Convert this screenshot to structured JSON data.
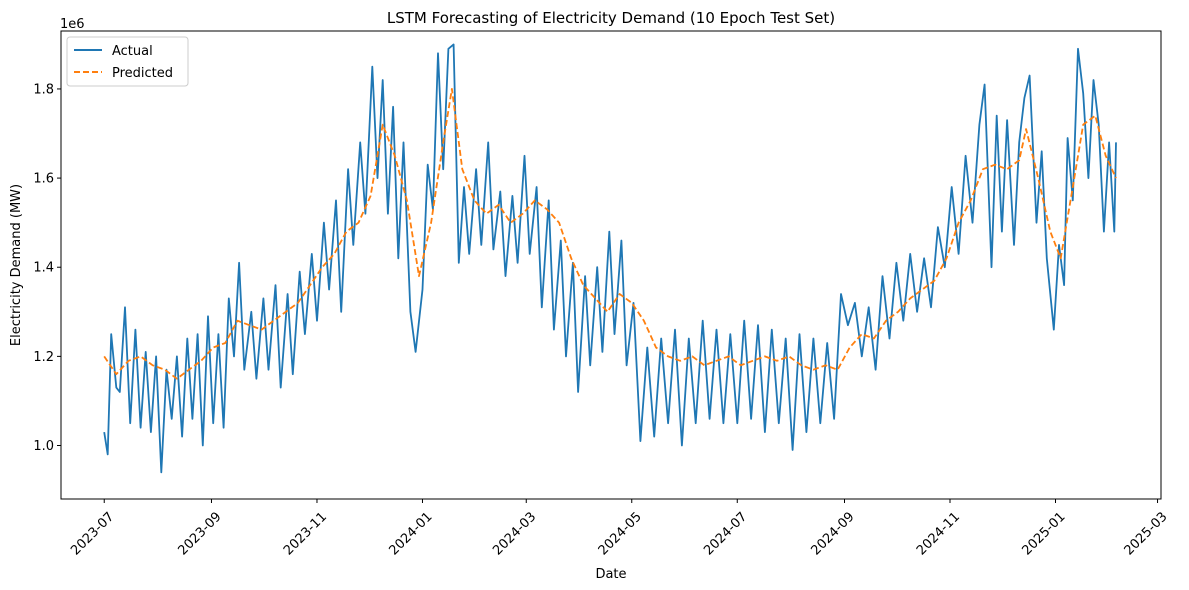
{
  "chart_data": {
    "type": "line",
    "title": "LSTM Forecasting of Electricity Demand (10 Epoch Test Set)",
    "xlabel": "Date",
    "ylabel": "Electricity Demand (MW)",
    "y_offset_label": "1e6",
    "xlim": [
      "2023-06-06",
      "2025-03-03"
    ],
    "ylim": [
      0.88,
      1.93
    ],
    "y_unit_multiplier": 1000000,
    "x_ticks": [
      "2023-07",
      "2023-09",
      "2023-11",
      "2024-01",
      "2024-03",
      "2024-05",
      "2024-07",
      "2024-09",
      "2024-11",
      "2025-01",
      "2025-03"
    ],
    "y_ticks": [
      1.0,
      1.2,
      1.4,
      1.6,
      1.8
    ],
    "y_tick_labels": [
      "1.0",
      "1.2",
      "1.4",
      "1.6",
      "1.8"
    ],
    "legend_position": "upper-left",
    "grid": false,
    "series": [
      {
        "name": "Actual",
        "color": "#1f77b4",
        "style": "solid",
        "points": [
          [
            "2023-07-01",
            1.03
          ],
          [
            "2023-07-03",
            0.98
          ],
          [
            "2023-07-05",
            1.25
          ],
          [
            "2023-07-08",
            1.13
          ],
          [
            "2023-07-10",
            1.12
          ],
          [
            "2023-07-13",
            1.31
          ],
          [
            "2023-07-16",
            1.05
          ],
          [
            "2023-07-19",
            1.26
          ],
          [
            "2023-07-22",
            1.04
          ],
          [
            "2023-07-25",
            1.21
          ],
          [
            "2023-07-28",
            1.03
          ],
          [
            "2023-07-31",
            1.2
          ],
          [
            "2023-08-03",
            0.94
          ],
          [
            "2023-08-06",
            1.17
          ],
          [
            "2023-08-09",
            1.06
          ],
          [
            "2023-08-12",
            1.2
          ],
          [
            "2023-08-15",
            1.02
          ],
          [
            "2023-08-18",
            1.24
          ],
          [
            "2023-08-21",
            1.06
          ],
          [
            "2023-08-24",
            1.25
          ],
          [
            "2023-08-27",
            1.0
          ],
          [
            "2023-08-30",
            1.29
          ],
          [
            "2023-09-02",
            1.05
          ],
          [
            "2023-09-05",
            1.25
          ],
          [
            "2023-09-08",
            1.04
          ],
          [
            "2023-09-11",
            1.33
          ],
          [
            "2023-09-14",
            1.2
          ],
          [
            "2023-09-17",
            1.41
          ],
          [
            "2023-09-20",
            1.17
          ],
          [
            "2023-09-24",
            1.3
          ],
          [
            "2023-09-27",
            1.15
          ],
          [
            "2023-10-01",
            1.33
          ],
          [
            "2023-10-04",
            1.17
          ],
          [
            "2023-10-08",
            1.36
          ],
          [
            "2023-10-11",
            1.13
          ],
          [
            "2023-10-15",
            1.34
          ],
          [
            "2023-10-18",
            1.16
          ],
          [
            "2023-10-22",
            1.39
          ],
          [
            "2023-10-25",
            1.25
          ],
          [
            "2023-10-29",
            1.43
          ],
          [
            "2023-11-01",
            1.28
          ],
          [
            "2023-11-05",
            1.5
          ],
          [
            "2023-11-08",
            1.35
          ],
          [
            "2023-11-12",
            1.55
          ],
          [
            "2023-11-15",
            1.3
          ],
          [
            "2023-11-19",
            1.62
          ],
          [
            "2023-11-22",
            1.45
          ],
          [
            "2023-11-26",
            1.68
          ],
          [
            "2023-11-29",
            1.52
          ],
          [
            "2023-12-03",
            1.85
          ],
          [
            "2023-12-06",
            1.6
          ],
          [
            "2023-12-09",
            1.82
          ],
          [
            "2023-12-12",
            1.52
          ],
          [
            "2023-12-15",
            1.76
          ],
          [
            "2023-12-18",
            1.42
          ],
          [
            "2023-12-21",
            1.68
          ],
          [
            "2023-12-25",
            1.3
          ],
          [
            "2023-12-28",
            1.21
          ],
          [
            "2024-01-01",
            1.35
          ],
          [
            "2024-01-04",
            1.63
          ],
          [
            "2024-01-07",
            1.53
          ],
          [
            "2024-01-10",
            1.88
          ],
          [
            "2024-01-13",
            1.62
          ],
          [
            "2024-01-16",
            1.89
          ],
          [
            "2024-01-19",
            1.9
          ],
          [
            "2024-01-22",
            1.41
          ],
          [
            "2024-01-25",
            1.58
          ],
          [
            "2024-01-28",
            1.43
          ],
          [
            "2024-02-01",
            1.62
          ],
          [
            "2024-02-04",
            1.45
          ],
          [
            "2024-02-08",
            1.68
          ],
          [
            "2024-02-11",
            1.44
          ],
          [
            "2024-02-15",
            1.57
          ],
          [
            "2024-02-18",
            1.38
          ],
          [
            "2024-02-22",
            1.56
          ],
          [
            "2024-02-25",
            1.41
          ],
          [
            "2024-02-29",
            1.65
          ],
          [
            "2024-03-03",
            1.43
          ],
          [
            "2024-03-07",
            1.58
          ],
          [
            "2024-03-10",
            1.31
          ],
          [
            "2024-03-14",
            1.55
          ],
          [
            "2024-03-17",
            1.26
          ],
          [
            "2024-03-21",
            1.46
          ],
          [
            "2024-03-24",
            1.2
          ],
          [
            "2024-03-28",
            1.41
          ],
          [
            "2024-03-31",
            1.12
          ],
          [
            "2024-04-04",
            1.38
          ],
          [
            "2024-04-07",
            1.18
          ],
          [
            "2024-04-11",
            1.4
          ],
          [
            "2024-04-14",
            1.21
          ],
          [
            "2024-04-18",
            1.48
          ],
          [
            "2024-04-21",
            1.25
          ],
          [
            "2024-04-25",
            1.46
          ],
          [
            "2024-04-28",
            1.18
          ],
          [
            "2024-05-02",
            1.32
          ],
          [
            "2024-05-06",
            1.01
          ],
          [
            "2024-05-10",
            1.22
          ],
          [
            "2024-05-14",
            1.02
          ],
          [
            "2024-05-18",
            1.24
          ],
          [
            "2024-05-22",
            1.05
          ],
          [
            "2024-05-26",
            1.26
          ],
          [
            "2024-05-30",
            1.0
          ],
          [
            "2024-06-03",
            1.24
          ],
          [
            "2024-06-07",
            1.05
          ],
          [
            "2024-06-11",
            1.28
          ],
          [
            "2024-06-15",
            1.06
          ],
          [
            "2024-06-19",
            1.26
          ],
          [
            "2024-06-23",
            1.05
          ],
          [
            "2024-06-27",
            1.25
          ],
          [
            "2024-07-01",
            1.05
          ],
          [
            "2024-07-05",
            1.28
          ],
          [
            "2024-07-09",
            1.06
          ],
          [
            "2024-07-13",
            1.27
          ],
          [
            "2024-07-17",
            1.03
          ],
          [
            "2024-07-21",
            1.26
          ],
          [
            "2024-07-25",
            1.05
          ],
          [
            "2024-07-29",
            1.24
          ],
          [
            "2024-08-02",
            0.99
          ],
          [
            "2024-08-06",
            1.25
          ],
          [
            "2024-08-10",
            1.03
          ],
          [
            "2024-08-14",
            1.24
          ],
          [
            "2024-08-18",
            1.05
          ],
          [
            "2024-08-22",
            1.23
          ],
          [
            "2024-08-26",
            1.06
          ],
          [
            "2024-08-30",
            1.34
          ],
          [
            "2024-09-03",
            1.27
          ],
          [
            "2024-09-07",
            1.32
          ],
          [
            "2024-09-11",
            1.2
          ],
          [
            "2024-09-15",
            1.31
          ],
          [
            "2024-09-19",
            1.17
          ],
          [
            "2024-09-23",
            1.38
          ],
          [
            "2024-09-27",
            1.24
          ],
          [
            "2024-10-01",
            1.41
          ],
          [
            "2024-10-05",
            1.28
          ],
          [
            "2024-10-09",
            1.43
          ],
          [
            "2024-10-13",
            1.3
          ],
          [
            "2024-10-17",
            1.42
          ],
          [
            "2024-10-21",
            1.31
          ],
          [
            "2024-10-25",
            1.49
          ],
          [
            "2024-10-29",
            1.4
          ],
          [
            "2024-11-02",
            1.58
          ],
          [
            "2024-11-06",
            1.43
          ],
          [
            "2024-11-10",
            1.65
          ],
          [
            "2024-11-14",
            1.5
          ],
          [
            "2024-11-18",
            1.72
          ],
          [
            "2024-11-21",
            1.81
          ],
          [
            "2024-11-25",
            1.4
          ],
          [
            "2024-11-28",
            1.74
          ],
          [
            "2024-12-01",
            1.48
          ],
          [
            "2024-12-04",
            1.73
          ],
          [
            "2024-12-08",
            1.45
          ],
          [
            "2024-12-11",
            1.68
          ],
          [
            "2024-12-14",
            1.78
          ],
          [
            "2024-12-17",
            1.83
          ],
          [
            "2024-12-21",
            1.5
          ],
          [
            "2024-12-24",
            1.66
          ],
          [
            "2024-12-27",
            1.42
          ],
          [
            "2024-12-31",
            1.26
          ],
          [
            "2025-01-03",
            1.45
          ],
          [
            "2025-01-06",
            1.36
          ],
          [
            "2025-01-08",
            1.69
          ],
          [
            "2025-01-11",
            1.55
          ],
          [
            "2025-01-14",
            1.89
          ],
          [
            "2025-01-17",
            1.79
          ],
          [
            "2025-01-20",
            1.6
          ],
          [
            "2025-01-23",
            1.82
          ],
          [
            "2025-01-26",
            1.72
          ],
          [
            "2025-01-29",
            1.48
          ],
          [
            "2025-02-01",
            1.68
          ],
          [
            "2025-02-04",
            1.48
          ],
          [
            "2025-02-05",
            1.68
          ]
        ]
      },
      {
        "name": "Predicted",
        "color": "#ff7f0e",
        "style": "dashed",
        "points": [
          [
            "2023-07-01",
            1.2
          ],
          [
            "2023-07-08",
            1.16
          ],
          [
            "2023-07-15",
            1.19
          ],
          [
            "2023-07-22",
            1.2
          ],
          [
            "2023-07-29",
            1.18
          ],
          [
            "2023-08-05",
            1.17
          ],
          [
            "2023-08-12",
            1.15
          ],
          [
            "2023-08-19",
            1.17
          ],
          [
            "2023-08-26",
            1.19
          ],
          [
            "2023-09-02",
            1.22
          ],
          [
            "2023-09-09",
            1.23
          ],
          [
            "2023-09-16",
            1.28
          ],
          [
            "2023-09-23",
            1.27
          ],
          [
            "2023-09-30",
            1.26
          ],
          [
            "2023-10-07",
            1.28
          ],
          [
            "2023-10-14",
            1.3
          ],
          [
            "2023-10-21",
            1.32
          ],
          [
            "2023-10-28",
            1.36
          ],
          [
            "2023-11-04",
            1.4
          ],
          [
            "2023-11-11",
            1.43
          ],
          [
            "2023-11-18",
            1.48
          ],
          [
            "2023-11-25",
            1.5
          ],
          [
            "2023-12-02",
            1.56
          ],
          [
            "2023-12-09",
            1.72
          ],
          [
            "2023-12-16",
            1.65
          ],
          [
            "2023-12-23",
            1.55
          ],
          [
            "2023-12-30",
            1.38
          ],
          [
            "2024-01-06",
            1.5
          ],
          [
            "2024-01-13",
            1.68
          ],
          [
            "2024-01-18",
            1.8
          ],
          [
            "2024-01-24",
            1.62
          ],
          [
            "2024-01-31",
            1.55
          ],
          [
            "2024-02-07",
            1.52
          ],
          [
            "2024-02-14",
            1.54
          ],
          [
            "2024-02-21",
            1.5
          ],
          [
            "2024-02-28",
            1.52
          ],
          [
            "2024-03-06",
            1.55
          ],
          [
            "2024-03-13",
            1.53
          ],
          [
            "2024-03-20",
            1.5
          ],
          [
            "2024-03-27",
            1.42
          ],
          [
            "2024-04-03",
            1.36
          ],
          [
            "2024-04-10",
            1.33
          ],
          [
            "2024-04-17",
            1.3
          ],
          [
            "2024-04-24",
            1.34
          ],
          [
            "2024-05-01",
            1.32
          ],
          [
            "2024-05-08",
            1.28
          ],
          [
            "2024-05-15",
            1.22
          ],
          [
            "2024-05-22",
            1.2
          ],
          [
            "2024-05-29",
            1.19
          ],
          [
            "2024-06-05",
            1.2
          ],
          [
            "2024-06-12",
            1.18
          ],
          [
            "2024-06-19",
            1.19
          ],
          [
            "2024-06-26",
            1.2
          ],
          [
            "2024-07-03",
            1.18
          ],
          [
            "2024-07-10",
            1.19
          ],
          [
            "2024-07-17",
            1.2
          ],
          [
            "2024-07-24",
            1.19
          ],
          [
            "2024-07-31",
            1.2
          ],
          [
            "2024-08-07",
            1.18
          ],
          [
            "2024-08-14",
            1.17
          ],
          [
            "2024-08-21",
            1.18
          ],
          [
            "2024-08-28",
            1.17
          ],
          [
            "2024-09-04",
            1.22
          ],
          [
            "2024-09-11",
            1.25
          ],
          [
            "2024-09-18",
            1.24
          ],
          [
            "2024-09-25",
            1.28
          ],
          [
            "2024-10-02",
            1.3
          ],
          [
            "2024-10-09",
            1.33
          ],
          [
            "2024-10-16",
            1.35
          ],
          [
            "2024-10-23",
            1.37
          ],
          [
            "2024-10-30",
            1.42
          ],
          [
            "2024-11-06",
            1.5
          ],
          [
            "2024-11-13",
            1.55
          ],
          [
            "2024-11-20",
            1.62
          ],
          [
            "2024-11-27",
            1.63
          ],
          [
            "2024-12-04",
            1.62
          ],
          [
            "2024-12-11",
            1.64
          ],
          [
            "2024-12-15",
            1.71
          ],
          [
            "2024-12-22",
            1.6
          ],
          [
            "2024-12-29",
            1.48
          ],
          [
            "2025-01-04",
            1.42
          ],
          [
            "2025-01-11",
            1.58
          ],
          [
            "2025-01-17",
            1.72
          ],
          [
            "2025-01-24",
            1.74
          ],
          [
            "2025-01-30",
            1.65
          ],
          [
            "2025-02-05",
            1.6
          ]
        ]
      }
    ]
  }
}
